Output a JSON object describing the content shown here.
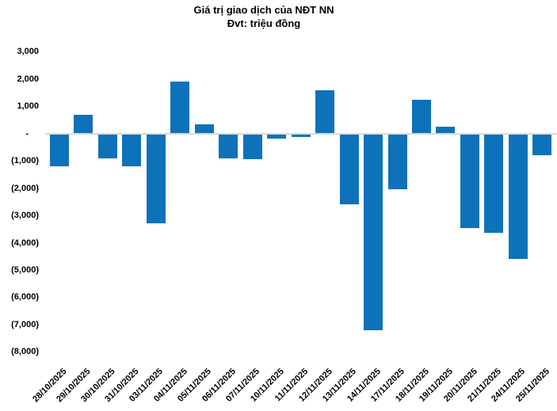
{
  "chart_data": {
    "type": "bar",
    "title": "Giá trị giao dịch của NĐT NN",
    "subtitle": "Đvt: triệu đồng",
    "xlabel": "",
    "ylabel": "",
    "categories": [
      "28/10/2025",
      "29/10/2025",
      "30/10/2025",
      "31/10/2025",
      "03/11/2025",
      "04/11/2025",
      "05/11/2025",
      "06/11/2025",
      "07/11/2025",
      "10/11/2025",
      "11/11/2025",
      "12/11/2025",
      "13/11/2025",
      "14/11/2025",
      "17/11/2025",
      "18/11/2025",
      "19/11/2025",
      "20/11/2025",
      "21/11/2025",
      "24/11/2025",
      "25/11/2025"
    ],
    "values": [
      -1200,
      700,
      -900,
      -1200,
      -3300,
      1900,
      350,
      -900,
      -950,
      -180,
      -130,
      1600,
      -2600,
      -7200,
      -2050,
      1250,
      250,
      -3450,
      -3650,
      -4600,
      -800
    ],
    "ylim": [
      -8000,
      3000
    ],
    "ytick_step": 1000,
    "ytick_labels": [
      "3,000",
      "2,000",
      "1,000",
      "-",
      "(1,000)",
      "(2,000)",
      "(3,000)",
      "(4,000)",
      "(5,000)",
      "(6,000)",
      "(7,000)",
      "(8,000)"
    ],
    "grid": false,
    "legend": false,
    "negative_number_format": "parentheses",
    "bar_color": "#0E72BA",
    "zero_line_color": "#D9D9D9",
    "text_color": "#000000"
  }
}
